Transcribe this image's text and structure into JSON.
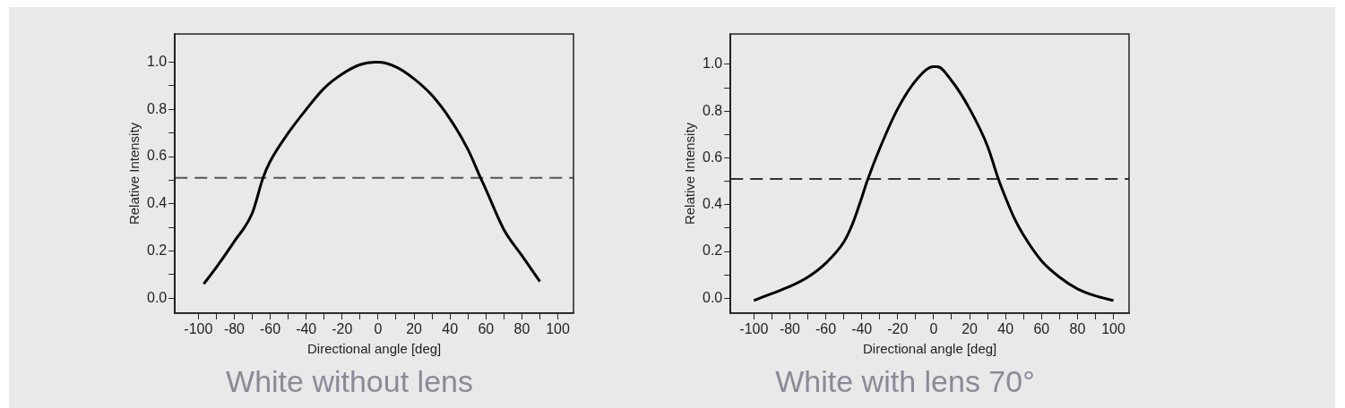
{
  "chart_data": [
    {
      "type": "line",
      "title": "White without lens",
      "xlabel": "Directional angle [deg]",
      "ylabel": "Relative Intensity",
      "marker": "none",
      "grid": false,
      "legend": false,
      "xlim": [
        -113,
        108.7
      ],
      "ylim": [
        -0.064,
        1.12
      ],
      "xticks": [
        -100,
        {
          "value": -90,
          "label": null
        },
        -80,
        {
          "value": -70,
          "label": null
        },
        -60,
        {
          "value": -50,
          "label": null
        },
        -40,
        {
          "value": -30,
          "label": null
        },
        -20,
        {
          "value": -10,
          "label": null
        },
        0,
        {
          "value": 10,
          "label": null
        },
        20,
        {
          "value": 30,
          "label": null
        },
        40,
        {
          "value": 50,
          "label": null
        },
        60,
        {
          "value": 70,
          "label": null
        },
        80,
        {
          "value": 90,
          "label": null
        },
        100
      ],
      "yticks": [
        {
          "value": 0,
          "label": "0.0"
        },
        {
          "value": 0.1,
          "label": null
        },
        {
          "value": 0.2,
          "label": "0.2"
        },
        {
          "value": 0.3,
          "label": null
        },
        {
          "value": 0.4,
          "label": "0.4"
        },
        {
          "value": 0.5,
          "label": null
        },
        {
          "value": 0.6,
          "label": "0.6"
        },
        {
          "value": 0.7,
          "label": null
        },
        {
          "value": 0.8,
          "label": "0.8"
        },
        {
          "value": 0.9,
          "label": null
        },
        {
          "value": 1,
          "label": "1.0"
        }
      ],
      "ref_lines": [
        {
          "axis": "y",
          "value": 0.51,
          "color": "#555555",
          "line_style": "dashed"
        }
      ],
      "series": [
        {
          "color": "#000000",
          "x": [
            -97,
            -90,
            -80,
            -70,
            -64,
            -60,
            -50,
            -40,
            -30,
            -20,
            -10,
            -2,
            0,
            10,
            20,
            30,
            40,
            50,
            57,
            60,
            70,
            80,
            90
          ],
          "values": [
            0.06,
            0.13,
            0.24,
            0.36,
            0.51,
            0.58,
            0.7,
            0.8,
            0.89,
            0.95,
            0.99,
            1.0,
            1.0,
            0.98,
            0.93,
            0.86,
            0.76,
            0.63,
            0.51,
            0.46,
            0.29,
            0.18,
            0.07
          ]
        }
      ]
    },
    {
      "type": "line",
      "title": "White with lens 70°",
      "xlabel": "Directional angle [deg]",
      "ylabel": "Relative Intensity",
      "marker": "none",
      "grid": false,
      "legend": false,
      "xlim": [
        -113,
        108.7
      ],
      "ylim": [
        -0.064,
        1.13
      ],
      "xticks": [
        -100,
        {
          "value": -90,
          "label": null
        },
        -80,
        {
          "value": -70,
          "label": null
        },
        -60,
        {
          "value": -50,
          "label": null
        },
        -40,
        {
          "value": -30,
          "label": null
        },
        -20,
        {
          "value": -10,
          "label": null
        },
        0,
        {
          "value": 10,
          "label": null
        },
        20,
        {
          "value": 30,
          "label": null
        },
        40,
        {
          "value": 50,
          "label": null
        },
        60,
        {
          "value": 70,
          "label": null
        },
        80,
        {
          "value": 90,
          "label": null
        },
        100
      ],
      "yticks": [
        {
          "value": 0,
          "label": "0.0"
        },
        {
          "value": 0.1,
          "label": null
        },
        {
          "value": 0.2,
          "label": "0.2"
        },
        {
          "value": 0.3,
          "label": null
        },
        {
          "value": 0.4,
          "label": "0.4"
        },
        {
          "value": 0.5,
          "label": null
        },
        {
          "value": 0.6,
          "label": "0.6"
        },
        {
          "value": 0.7,
          "label": null
        },
        {
          "value": 0.8,
          "label": "0.8"
        },
        {
          "value": 0.9,
          "label": null
        },
        {
          "value": 1,
          "label": "1.0"
        }
      ],
      "ref_lines": [
        {
          "axis": "y",
          "value": 0.51,
          "color": "#333333",
          "line_style": "dashed"
        }
      ],
      "series": [
        {
          "color": "#000000",
          "x": [
            -100,
            -90,
            -80,
            -70,
            -60,
            -50,
            -45,
            -40,
            -37,
            -30,
            -20,
            -10,
            0,
            2,
            10,
            20,
            30,
            36,
            40,
            45,
            50,
            60,
            70,
            80,
            90,
            100
          ],
          "values": [
            -0.01,
            0.02,
            0.05,
            0.09,
            0.15,
            0.24,
            0.32,
            0.43,
            0.5,
            0.64,
            0.81,
            0.93,
            0.99,
            0.99,
            0.93,
            0.81,
            0.65,
            0.51,
            0.43,
            0.34,
            0.27,
            0.16,
            0.09,
            0.04,
            0.01,
            -0.01
          ]
        }
      ]
    }
  ]
}
